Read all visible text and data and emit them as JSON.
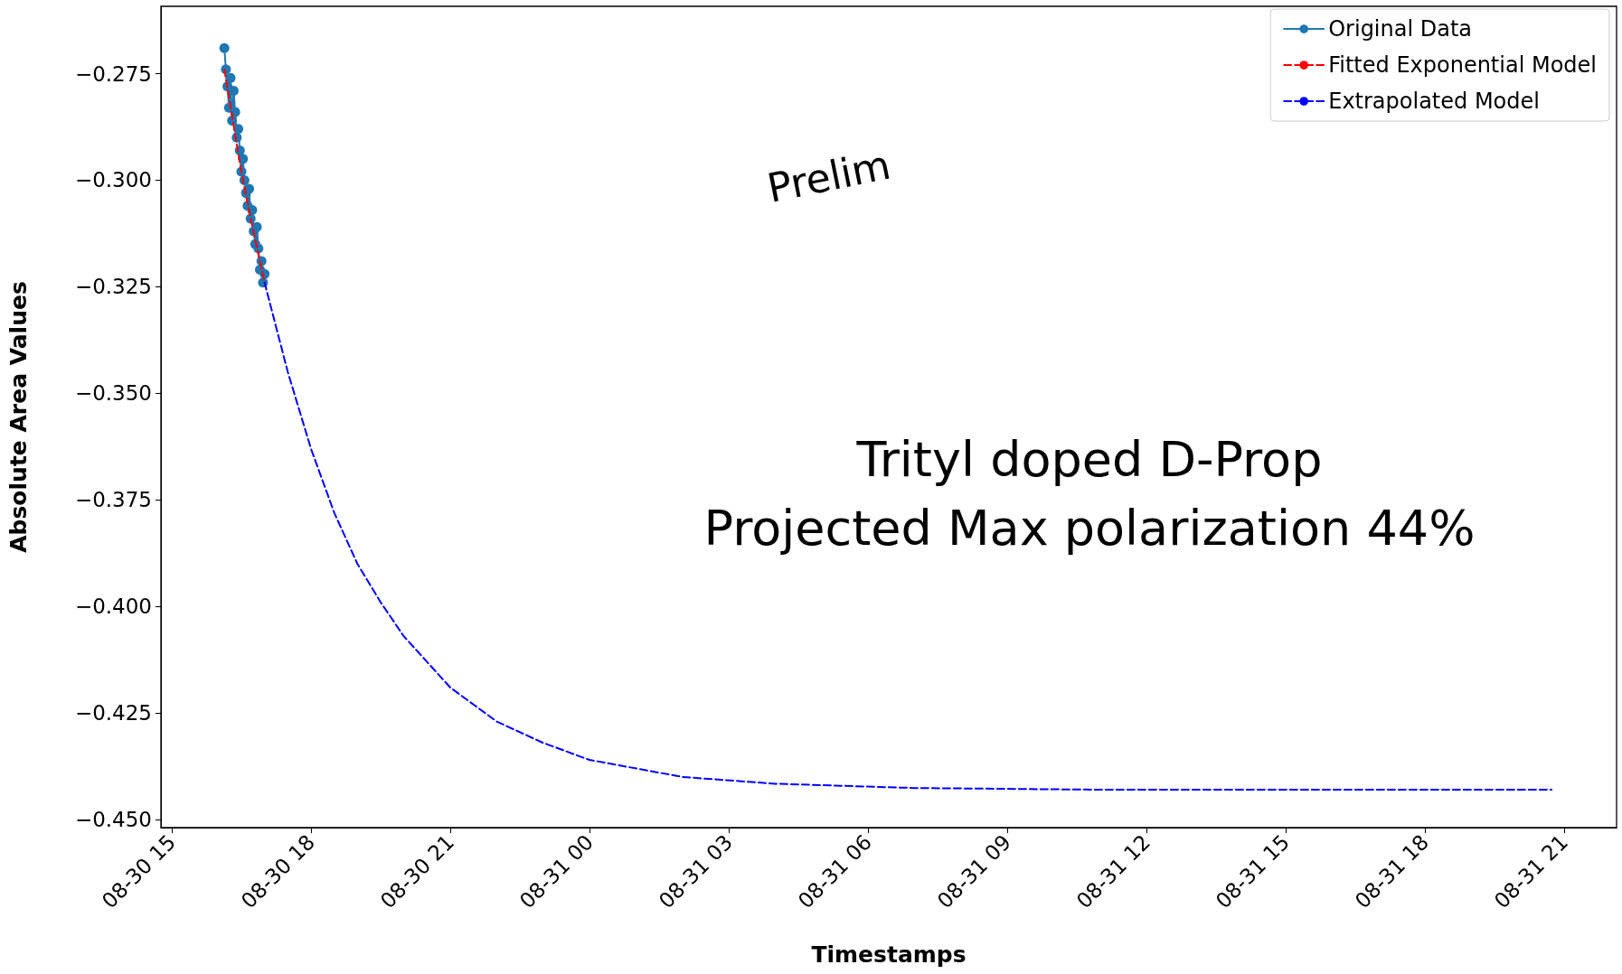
{
  "chart_data": {
    "type": "line",
    "xlabel": "Timestamps",
    "ylabel": "Absolute Area Values",
    "xlim": [
      "--08-30T14:46",
      "--08-31T22:08"
    ],
    "xticks": [
      {
        "value": "--08-30T15:00",
        "label": "08-30 15"
      },
      {
        "value": "--08-30T18:00",
        "label": "08-30 18"
      },
      {
        "value": "--08-30T21:00",
        "label": "08-30 21"
      },
      {
        "value": "--08-31T00:00",
        "label": "08-31 00"
      },
      {
        "value": "--08-31T03:00",
        "label": "08-31 03"
      },
      {
        "value": "--08-31T06:00",
        "label": "08-31 06"
      },
      {
        "value": "--08-31T09:00",
        "label": "08-31 09"
      },
      {
        "value": "--08-31T12:00",
        "label": "08-31 12"
      },
      {
        "value": "--08-31T15:00",
        "label": "08-31 15"
      },
      {
        "value": "--08-31T18:00",
        "label": "08-31 18"
      },
      {
        "value": "--08-31T21:00",
        "label": "08-31 21"
      }
    ],
    "ylim": [
      -0.4519,
      -0.2592
    ],
    "yticks": [
      {
        "value": -0.275,
        "label": "−0.275"
      },
      {
        "value": -0.3,
        "label": "−0.300"
      },
      {
        "value": -0.325,
        "label": "−0.325"
      },
      {
        "value": -0.35,
        "label": "−0.350"
      },
      {
        "value": -0.375,
        "label": "−0.375"
      },
      {
        "value": -0.4,
        "label": "−0.400"
      },
      {
        "value": -0.425,
        "label": "−0.425"
      },
      {
        "value": -0.45,
        "label": "−0.450"
      }
    ],
    "grid": false,
    "legend": "top right",
    "annotations": [
      "Prelim",
      "Trityl doped D-Prop\nProjected Max polarization 44%"
    ],
    "series": [
      {
        "name": "Original Data",
        "color": "#1f77b4",
        "marker": "circle",
        "line_style": "solid",
        "x": [
          "--08-30T16:08",
          "--08-30T16:10",
          "--08-30T16:12",
          "--08-30T16:14",
          "--08-30T16:16",
          "--08-30T16:18",
          "--08-30T16:20",
          "--08-30T16:22",
          "--08-30T16:24",
          "--08-30T16:26",
          "--08-30T16:28",
          "--08-30T16:30",
          "--08-30T16:32",
          "--08-30T16:34",
          "--08-30T16:36",
          "--08-30T16:38",
          "--08-30T16:40",
          "--08-30T16:42",
          "--08-30T16:44",
          "--08-30T16:46",
          "--08-30T16:48",
          "--08-30T16:50",
          "--08-30T16:52",
          "--08-30T16:54",
          "--08-30T16:56",
          "--08-30T16:58",
          "--08-30T17:00"
        ],
        "values": [
          -0.269,
          -0.274,
          -0.278,
          -0.283,
          -0.276,
          -0.286,
          -0.279,
          -0.284,
          -0.29,
          -0.288,
          -0.293,
          -0.298,
          -0.295,
          -0.3,
          -0.303,
          -0.306,
          -0.302,
          -0.309,
          -0.307,
          -0.312,
          -0.315,
          -0.311,
          -0.316,
          -0.321,
          -0.319,
          -0.324,
          -0.322
        ]
      },
      {
        "name": "Fitted Exponential Model",
        "color": "#ff0000",
        "marker": "none",
        "line_style": "dashed",
        "x": [
          "--08-30T16:08",
          "--08-30T16:18",
          "--08-30T16:30",
          "--08-30T16:42",
          "--08-30T17:00"
        ],
        "values": [
          -0.274,
          -0.285,
          -0.298,
          -0.309,
          -0.324
        ]
      },
      {
        "name": "Extrapolated Model",
        "color": "#0000ff",
        "marker": "none",
        "line_style": "dashed",
        "x": [
          "--08-30T17:00",
          "--08-30T17:30",
          "--08-30T18:00",
          "--08-30T18:30",
          "--08-30T19:00",
          "--08-30T19:30",
          "--08-30T20:00",
          "--08-30T21:00",
          "--08-30T22:00",
          "--08-30T23:00",
          "--08-31T00:00",
          "--08-31T02:00",
          "--08-31T04:00",
          "--08-31T07:00",
          "--08-31T11:00",
          "--08-31T16:00",
          "--08-31T20:44"
        ],
        "values": [
          -0.324,
          -0.345,
          -0.363,
          -0.378,
          -0.39,
          -0.399,
          -0.407,
          -0.419,
          -0.427,
          -0.432,
          -0.436,
          -0.44,
          -0.4416,
          -0.4426,
          -0.443,
          -0.443,
          -0.443
        ]
      }
    ]
  }
}
